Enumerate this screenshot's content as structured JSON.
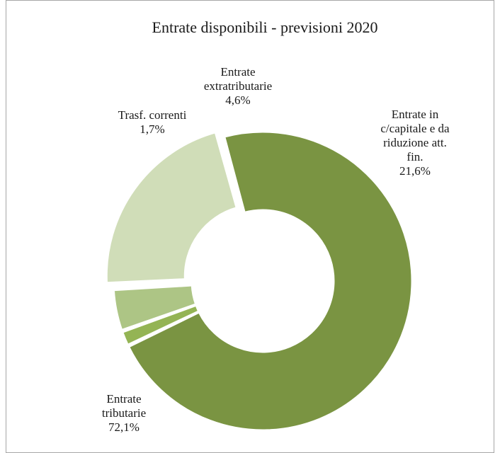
{
  "chart_data": {
    "type": "pie",
    "donut": true,
    "title": "Entrate disponibili  - previsioni 2020",
    "slices": [
      {
        "name": "Entrate tributarie",
        "label_lines": [
          "Entrate",
          "tributarie"
        ],
        "value_text": "72,1%",
        "value": 72.1,
        "color": "#7a9442"
      },
      {
        "name": "Trasf. correnti",
        "label_lines": [
          "Trasf. correnti"
        ],
        "value_text": "1,7%",
        "value": 1.7,
        "color": "#94b454"
      },
      {
        "name": "Entrate extratributarie",
        "label_lines": [
          "Entrate",
          "extratributarie"
        ],
        "value_text": "4,6%",
        "value": 4.6,
        "color": "#adc585"
      },
      {
        "name": "Entrate in c/capitale e da riduzione att. fin.",
        "label_lines": [
          "Entrate in",
          "c/capitale e da",
          "riduzione att.",
          "fin."
        ],
        "value_text": "21,6%",
        "value": 21.6,
        "color": "#d0ddb8",
        "exploded": true
      }
    ]
  }
}
